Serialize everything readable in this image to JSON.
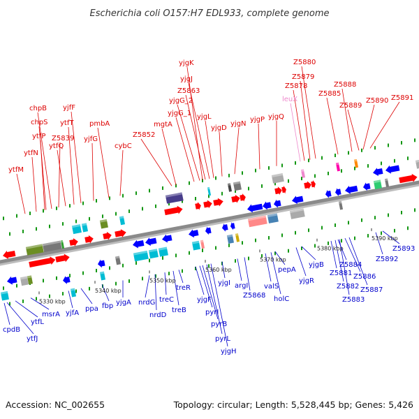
{
  "title": "Escherichia coli O157:H7 EDL933, complete genome",
  "accession_text": "Accession: NC_002655",
  "summary_text": "Topology: circular; Length: 5,528,445 bp; Genes: 5,426",
  "colors": {
    "forward_label": "#dd0000",
    "reverse_label": "#0000cc",
    "rna_label": "#ee88cc",
    "backbone": "#8a8a8a"
  },
  "scale_labels": [
    "5330 kbp",
    "5340 kbp",
    "5350 kbp",
    "5360 kbp",
    "5370 kbp",
    "5380 kbp",
    "5390 kbp"
  ],
  "top_labels": [
    "ytfM",
    "ytfN",
    "ytfP",
    "chpS",
    "chpB",
    "Z5839",
    "ytfQ",
    "ytfT",
    "yjfF",
    "yjfG",
    "pmbA",
    "cybC",
    "Z5852",
    "mgtA",
    "yjgG_1",
    "yjgG_2",
    "Z5863",
    "yjgJ",
    "yjgK",
    "yjgL",
    "yjgD",
    "yjgN",
    "yjgP",
    "yjgQ",
    "leuX",
    "Z5878",
    "Z5879",
    "Z5880",
    "Z5885",
    "Z5888",
    "Z5889",
    "Z5890",
    "Z5891"
  ],
  "bottom_labels": [
    "cpdB",
    "ytfJ",
    "ytfL",
    "msrA",
    "yjfA",
    "ppa",
    "fbp",
    "yjgA",
    "nrdG",
    "nrdD",
    "treC",
    "treB",
    "treR",
    "yjgF",
    "pyrI",
    "pyrB",
    "pyrL",
    "yjgH",
    "yjgI",
    "argI",
    "Z5868",
    "valS",
    "holC",
    "pepA",
    "yjgB",
    "yjgR",
    "Z5881",
    "Z5882",
    "Z5883",
    "Z5884",
    "Z5886",
    "Z5887",
    "Z5892",
    "Z5893"
  ]
}
